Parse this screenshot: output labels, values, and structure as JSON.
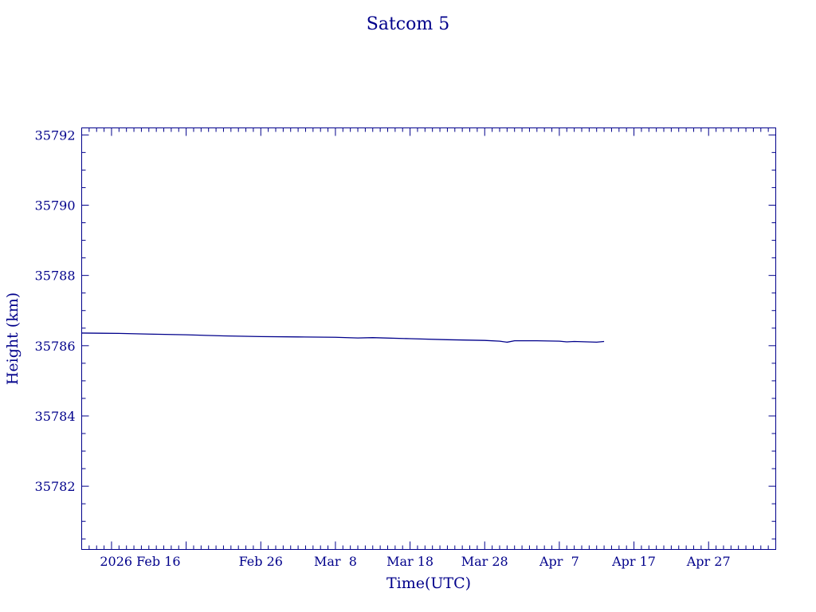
{
  "chart_data": {
    "type": "line",
    "title": "Satcom 5",
    "xlabel": "Time(UTC)",
    "ylabel": "Height (km)",
    "x_start": "2026-02-02",
    "x_end": "2026-05-06",
    "x_ticks": [
      {
        "date": "2026-02-06",
        "label": "2026 Feb 16",
        "label_date": "2026-02-16"
      },
      {
        "date": "2026-02-16",
        "label": "",
        "label_date": null
      },
      {
        "date": "2026-02-26",
        "label": "Feb 26",
        "label_date": "2026-02-26"
      },
      {
        "date": "2026-03-08",
        "label": "Mar  8",
        "label_date": "2026-03-08"
      },
      {
        "date": "2026-03-18",
        "label": "Mar 18",
        "label_date": "2026-03-18"
      },
      {
        "date": "2026-03-28",
        "label": "Mar 28",
        "label_date": "2026-03-28"
      },
      {
        "date": "2026-04-07",
        "label": "Apr  7",
        "label_date": "2026-04-07"
      },
      {
        "date": "2026-04-17",
        "label": "Apr 17",
        "label_date": "2026-04-17"
      },
      {
        "date": "2026-04-27",
        "label": "Apr 27",
        "label_date": "2026-04-27"
      }
    ],
    "ylim": [
      35780.2,
      35792.2
    ],
    "y_ticks": [
      35782,
      35784,
      35786,
      35788,
      35790,
      35792
    ],
    "y_minor_step": 0.5,
    "grid": false,
    "series": [
      {
        "name": "",
        "color": "#00008b",
        "points": [
          {
            "x": "2026-02-02",
            "y": 35786.36
          },
          {
            "x": "2026-02-07",
            "y": 35786.35
          },
          {
            "x": "2026-02-11",
            "y": 35786.33
          },
          {
            "x": "2026-02-16",
            "y": 35786.31
          },
          {
            "x": "2026-02-21",
            "y": 35786.28
          },
          {
            "x": "2026-02-26",
            "y": 35786.26
          },
          {
            "x": "2026-03-03",
            "y": 35786.25
          },
          {
            "x": "2026-03-08",
            "y": 35786.24
          },
          {
            "x": "2026-03-11",
            "y": 35786.22
          },
          {
            "x": "2026-03-13",
            "y": 35786.23
          },
          {
            "x": "2026-03-18",
            "y": 35786.2
          },
          {
            "x": "2026-03-23",
            "y": 35786.17
          },
          {
            "x": "2026-03-28",
            "y": 35786.15
          },
          {
            "x": "2026-03-30",
            "y": 35786.13
          },
          {
            "x": "2026-03-31",
            "y": 35786.1
          },
          {
            "x": "2026-04-01",
            "y": 35786.14
          },
          {
            "x": "2026-04-04",
            "y": 35786.14
          },
          {
            "x": "2026-04-07",
            "y": 35786.13
          },
          {
            "x": "2026-04-08",
            "y": 35786.11
          },
          {
            "x": "2026-04-09",
            "y": 35786.12
          },
          {
            "x": "2026-04-12",
            "y": 35786.1
          },
          {
            "x": "2026-04-13",
            "y": 35786.12
          }
        ]
      }
    ]
  }
}
